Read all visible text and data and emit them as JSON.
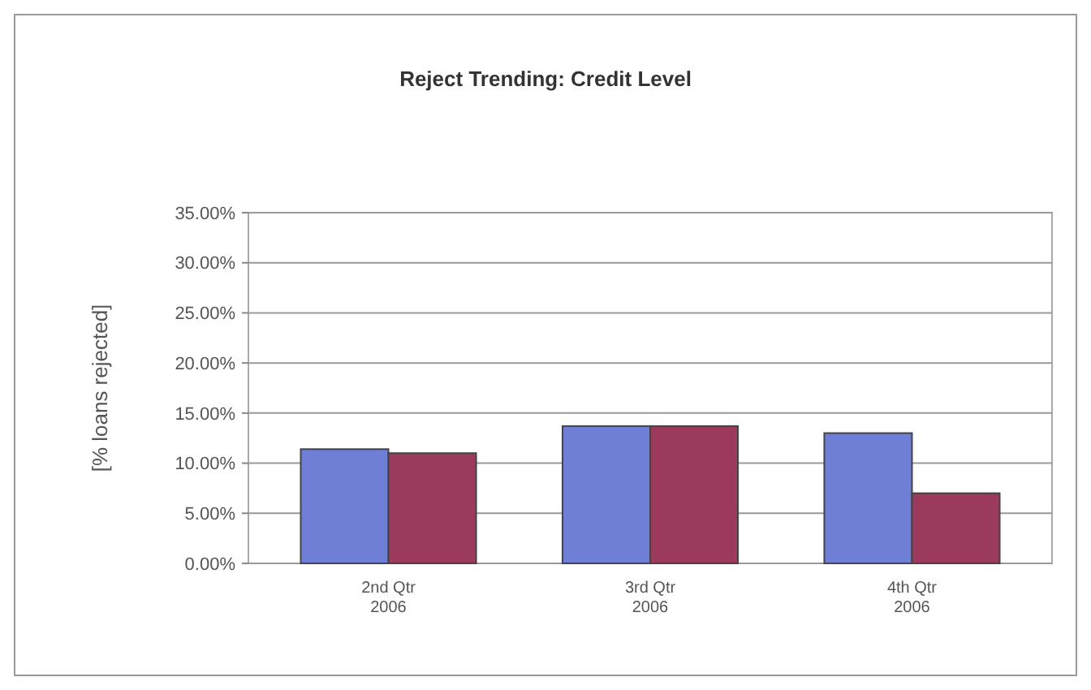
{
  "chart_data": {
    "type": "bar",
    "title": "Reject Trending: Credit Level",
    "ylabel": "[% loans rejected]",
    "categories": [
      "2nd Qtr\n2006",
      "3rd Qtr\n2006",
      "4th Qtr\n2006"
    ],
    "series": [
      {
        "color": "#6f7fd6",
        "values": [
          11.4,
          13.7,
          13.0
        ]
      },
      {
        "color": "#9c3a5e",
        "values": [
          11.0,
          13.7,
          7.0
        ]
      }
    ],
    "ylim": [
      0,
      35
    ],
    "yticks": [
      {
        "value": 0,
        "label": "0.00%"
      },
      {
        "value": 5,
        "label": "5.00%"
      },
      {
        "value": 10,
        "label": "10.00%"
      },
      {
        "value": 15,
        "label": "15.00%"
      },
      {
        "value": 20,
        "label": "20.00%"
      },
      {
        "value": 25,
        "label": "25.00%"
      },
      {
        "value": 30,
        "label": "30.00%"
      },
      {
        "value": 35,
        "label": "35.00%"
      }
    ],
    "grid": "y"
  }
}
